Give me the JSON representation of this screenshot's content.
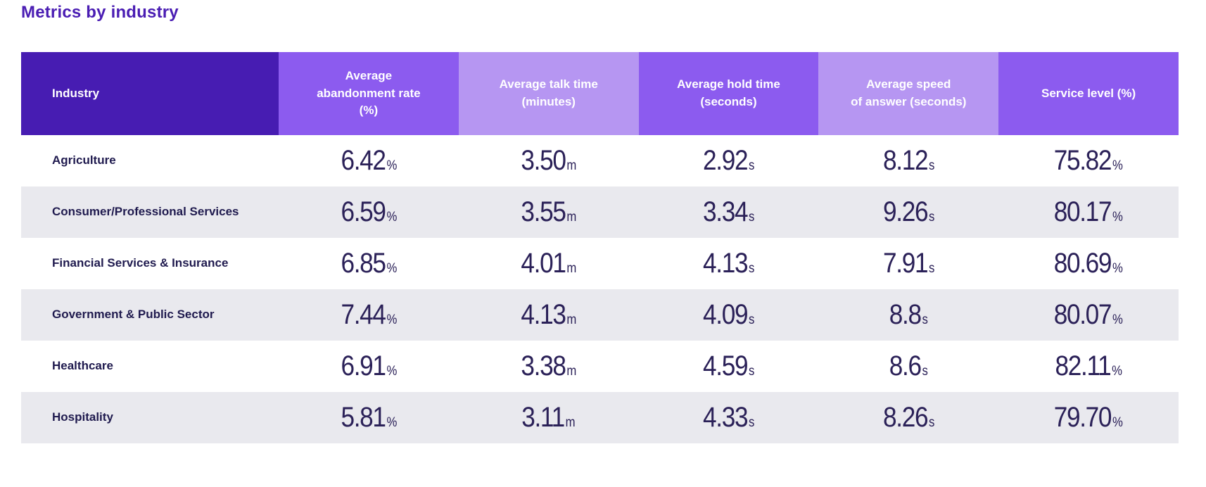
{
  "page": {
    "title": "Metrics by industry"
  },
  "colors": {
    "title": "#4a1db3",
    "header_dark": "#471cb2",
    "header_medium": "#8c5bef",
    "header_light": "#b696f2",
    "row_stripe": "#e9e9ee",
    "number_text": "#2b2158",
    "label_text": "#1f1a4e"
  },
  "table": {
    "columns": [
      {
        "label": "Industry",
        "tone": "dark"
      },
      {
        "label": "Average\nabandonment rate\n(%)",
        "tone": "medium"
      },
      {
        "label": "Average talk time\n(minutes)",
        "tone": "light"
      },
      {
        "label": "Average hold time\n(seconds)",
        "tone": "medium"
      },
      {
        "label": "Average speed\nof answer (seconds)",
        "tone": "light"
      },
      {
        "label": "Service level (%)",
        "tone": "medium"
      }
    ],
    "rows": [
      {
        "industry": "Agriculture",
        "metrics": [
          {
            "value": "6.42",
            "unit": "%"
          },
          {
            "value": "3.50",
            "unit": "m"
          },
          {
            "value": "2.92",
            "unit": "s"
          },
          {
            "value": "8.12",
            "unit": "s"
          },
          {
            "value": "75.82",
            "unit": "%"
          }
        ]
      },
      {
        "industry": "Consumer/Professional Services",
        "metrics": [
          {
            "value": "6.59",
            "unit": "%"
          },
          {
            "value": "3.55",
            "unit": "m"
          },
          {
            "value": "3.34",
            "unit": "s"
          },
          {
            "value": "9.26",
            "unit": "s"
          },
          {
            "value": "80.17",
            "unit": "%"
          }
        ]
      },
      {
        "industry": "Financial Services & Insurance",
        "metrics": [
          {
            "value": "6.85",
            "unit": "%"
          },
          {
            "value": "4.01",
            "unit": "m"
          },
          {
            "value": "4.13",
            "unit": "s"
          },
          {
            "value": "7.91",
            "unit": "s"
          },
          {
            "value": "80.69",
            "unit": "%"
          }
        ]
      },
      {
        "industry": "Government & Public Sector",
        "metrics": [
          {
            "value": "7.44",
            "unit": "%"
          },
          {
            "value": "4.13",
            "unit": "m"
          },
          {
            "value": "4.09",
            "unit": "s"
          },
          {
            "value": "8.8",
            "unit": "s"
          },
          {
            "value": "80.07",
            "unit": "%"
          }
        ]
      },
      {
        "industry": "Healthcare",
        "metrics": [
          {
            "value": "6.91",
            "unit": "%"
          },
          {
            "value": "3.38",
            "unit": "m"
          },
          {
            "value": "4.59",
            "unit": "s"
          },
          {
            "value": "8.6",
            "unit": "s"
          },
          {
            "value": "82.11",
            "unit": "%"
          }
        ]
      },
      {
        "industry": "Hospitality",
        "metrics": [
          {
            "value": "5.81",
            "unit": "%"
          },
          {
            "value": "3.11",
            "unit": "m"
          },
          {
            "value": "4.33",
            "unit": "s"
          },
          {
            "value": "8.26",
            "unit": "s"
          },
          {
            "value": "79.70",
            "unit": "%"
          }
        ]
      }
    ]
  },
  "chart_data": {
    "type": "table",
    "title": "Metrics by industry",
    "columns": [
      "Industry",
      "Average abandonment rate (%)",
      "Average talk time (minutes)",
      "Average hold time (seconds)",
      "Average speed of answer (seconds)",
      "Service level (%)"
    ],
    "rows": [
      [
        "Agriculture",
        6.42,
        3.5,
        2.92,
        8.12,
        75.82
      ],
      [
        "Consumer/Professional Services",
        6.59,
        3.55,
        3.34,
        9.26,
        80.17
      ],
      [
        "Financial Services & Insurance",
        6.85,
        4.01,
        4.13,
        7.91,
        80.69
      ],
      [
        "Government & Public Sector",
        7.44,
        4.13,
        4.09,
        8.8,
        80.07
      ],
      [
        "Healthcare",
        6.91,
        3.38,
        4.59,
        8.6,
        82.11
      ],
      [
        "Hospitality",
        5.81,
        3.11,
        4.33,
        8.26,
        79.7
      ]
    ],
    "units_per_column": [
      "",
      "%",
      "m",
      "s",
      "s",
      "%"
    ]
  }
}
